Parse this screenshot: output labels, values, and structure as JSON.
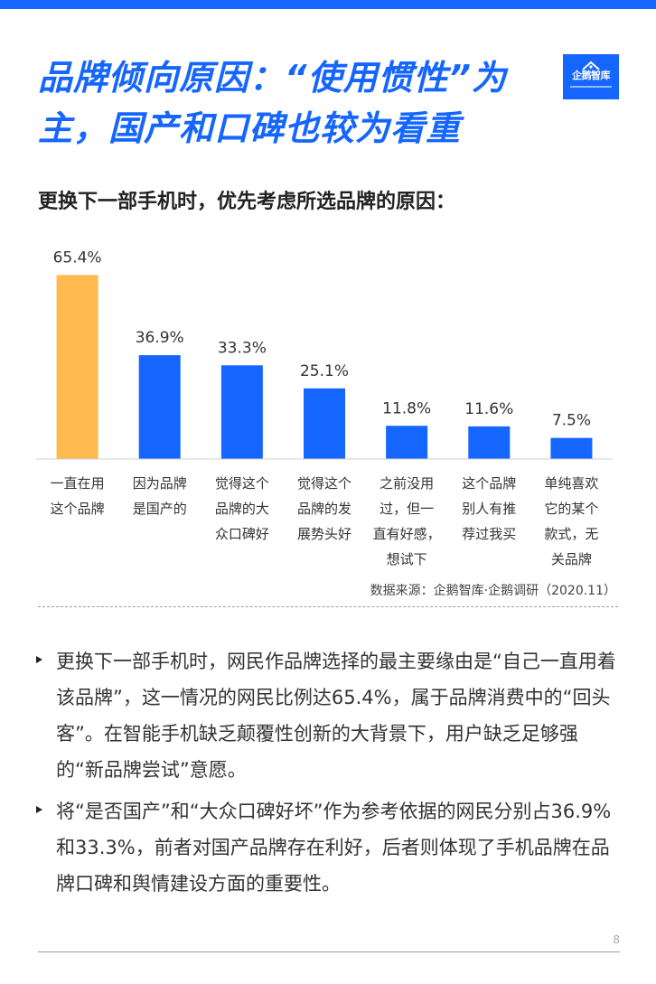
{
  "header": {
    "title_line1": "品牌倾向原因：“使用惯性”为",
    "title_line2": "主，国产和口碑也较为看重",
    "logo_text": "企鹅智库",
    "accent_color": "#1565ff"
  },
  "chart_title": "更换下一部手机时，优先考虑所选品牌的原因：",
  "chart_data": {
    "type": "bar",
    "title": "更换下一部手机时，优先考虑所选品牌的原因：",
    "categories": [
      [
        "一直在用",
        "这个品牌"
      ],
      [
        "因为品牌",
        "是国产的"
      ],
      [
        "觉得这个",
        "品牌的大",
        "众口碑好"
      ],
      [
        "觉得这个",
        "品牌的发",
        "展势头好"
      ],
      [
        "之前没用",
        "过，但一",
        "直有好感，",
        "想试下"
      ],
      [
        "这个品牌",
        "别人有推",
        "荐过我买"
      ],
      [
        "单纯喜欢",
        "它的某个",
        "款式，无",
        "关品牌"
      ]
    ],
    "values": [
      65.4,
      36.9,
      33.3,
      25.1,
      11.8,
      11.6,
      7.5
    ],
    "value_labels": [
      "65.4%",
      "36.9%",
      "33.3%",
      "25.1%",
      "11.8%",
      "11.6%",
      "7.5%"
    ],
    "unit": "%",
    "ylim": [
      0,
      70
    ],
    "grid": false,
    "legend": "none",
    "colors": [
      "#ffb94f",
      "#1565ff",
      "#1565ff",
      "#1565ff",
      "#1565ff",
      "#1565ff",
      "#1565ff"
    ]
  },
  "source_note": "数据来源：企鹅智库·企鹅调研（2020.11）",
  "bullets": [
    "更换下一部手机时，网民作品牌选择的最主要缘由是“自己一直用着该品牌”，这一情况的网民比例达65.4%，属于品牌消费中的“回头客”。在智能手机缺乏颠覆性创新的大背景下，用户缺乏足够强的“新品牌尝试”意愿。",
    "将“是否国产”和“大众口碑好坏”作为参考依据的网民分别占36.9%和33.3%，前者对国产品牌存在利好，后者则体现了手机品牌在品牌口碑和舆情建设方面的重要性。"
  ],
  "page_number": "8"
}
